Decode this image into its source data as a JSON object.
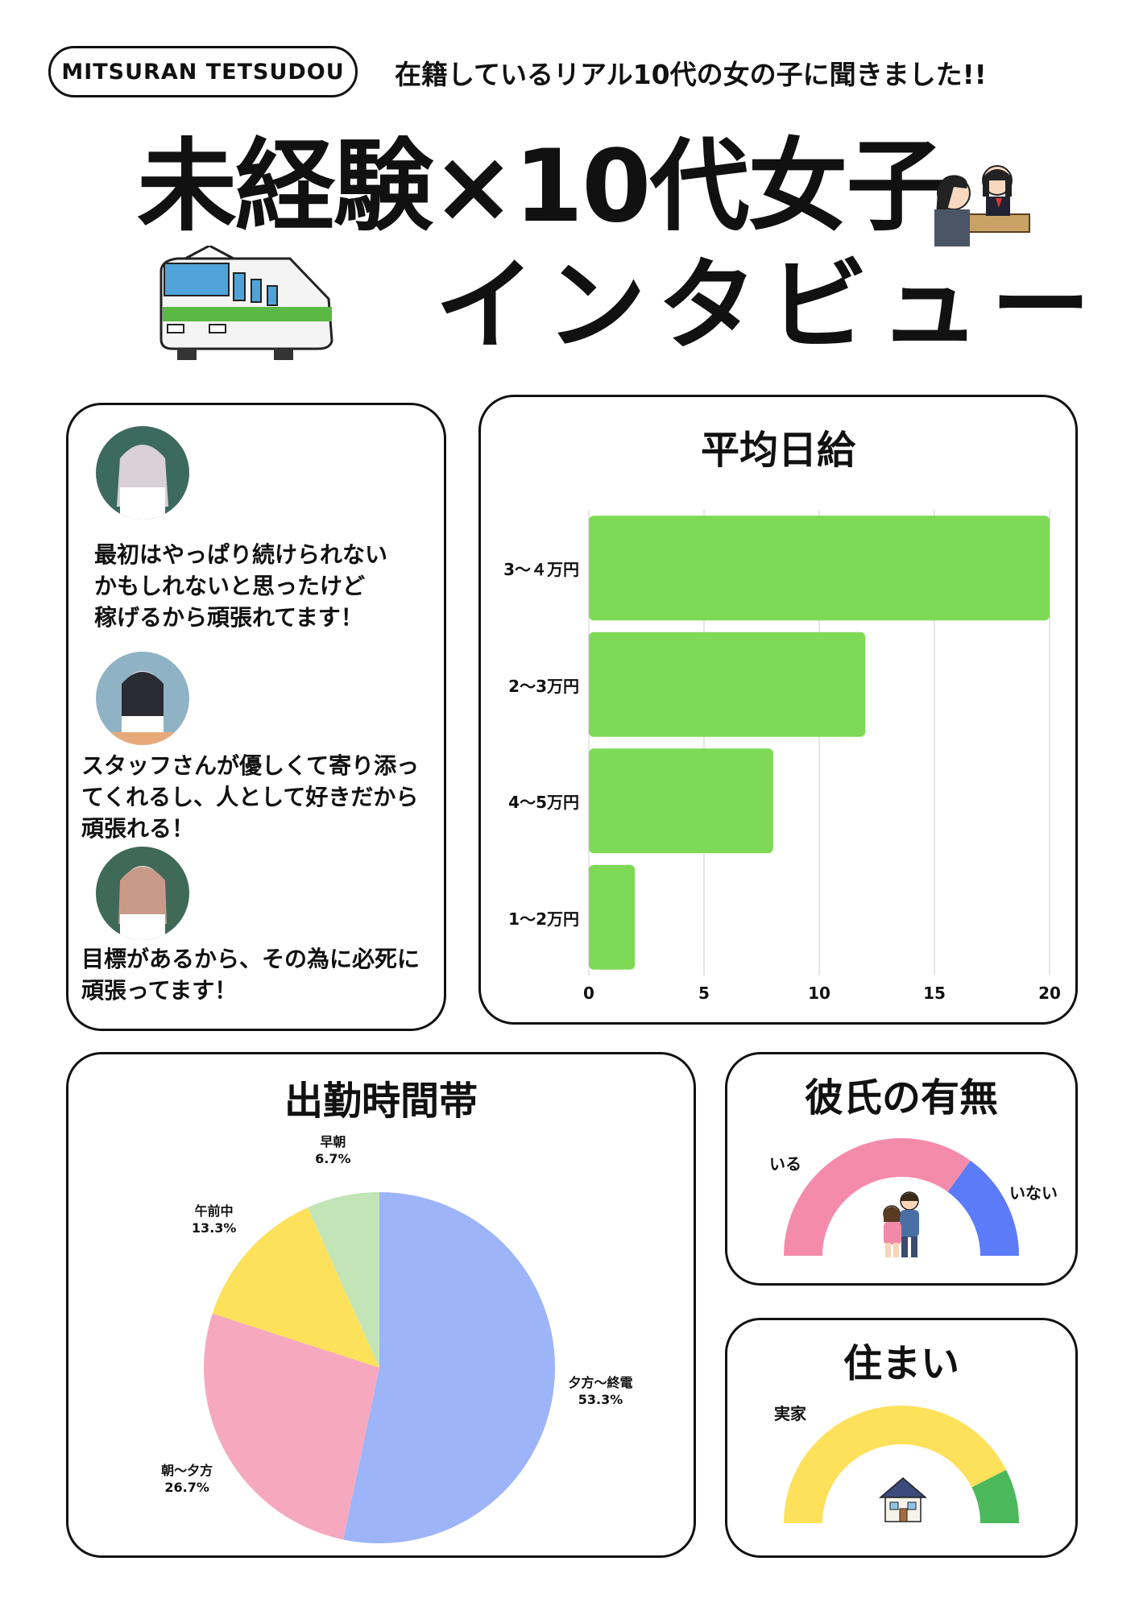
{
  "header": {
    "brand": "MITSURAN TETSUDOU",
    "headline": "在籍しているリアル10代の女の子に聞きました!!",
    "title_line1": "未経験×10代女子",
    "title_line2": "インタビュー"
  },
  "icons": {
    "train": "train-icon",
    "interview": "interview-icon",
    "couple": "couple-icon",
    "house": "house-icon"
  },
  "testimonials": [
    {
      "text": "最初はやっぱり続けられない\nかもしれないと思ったけど\n稼げるから頑張れてます！"
    },
    {
      "text": "スタッフさんが優しくて寄り添っ\nてくれるし、人として好きだから\n頑張れる！"
    },
    {
      "text": "目標があるから、その為に必死に\n頑張ってます！"
    }
  ],
  "chart_data": [
    {
      "type": "bar",
      "orientation": "horizontal",
      "title": "平均日給",
      "categories": [
        "3～４万円",
        "2～3万円",
        "4～5万円",
        "1～2万円"
      ],
      "values": [
        20,
        12,
        8,
        2
      ],
      "xlim": [
        0,
        20
      ],
      "ticks": [
        0,
        5,
        10,
        15,
        20
      ],
      "grid": true,
      "color": "#7ed957"
    },
    {
      "type": "pie",
      "title": "出勤時間帯",
      "slices": [
        {
          "label": "夕方～終電",
          "value": 53.3,
          "display": "53.3%",
          "color": "#9db4f9"
        },
        {
          "label": "朝～夕方",
          "value": 26.7,
          "display": "26.7%",
          "color": "#f6a8bf"
        },
        {
          "label": "午前中",
          "value": 13.3,
          "display": "13.3%",
          "color": "#fde15b"
        },
        {
          "label": "早朝",
          "value": 6.7,
          "display": "6.7%",
          "color": "#c2e4b7"
        }
      ]
    },
    {
      "type": "pie",
      "style": "half-donut",
      "title": "彼氏の有無",
      "slices": [
        {
          "label": "いる",
          "value": 70,
          "color": "#f58bab"
        },
        {
          "label": "いない",
          "value": 30,
          "color": "#5b7bf9"
        }
      ]
    },
    {
      "type": "pie",
      "style": "half-donut",
      "title": "住まい",
      "slices": [
        {
          "label": "実家",
          "value": 85,
          "color": "#fde15b"
        },
        {
          "label": "",
          "value": 15,
          "color": "#4cb85c"
        }
      ]
    }
  ]
}
